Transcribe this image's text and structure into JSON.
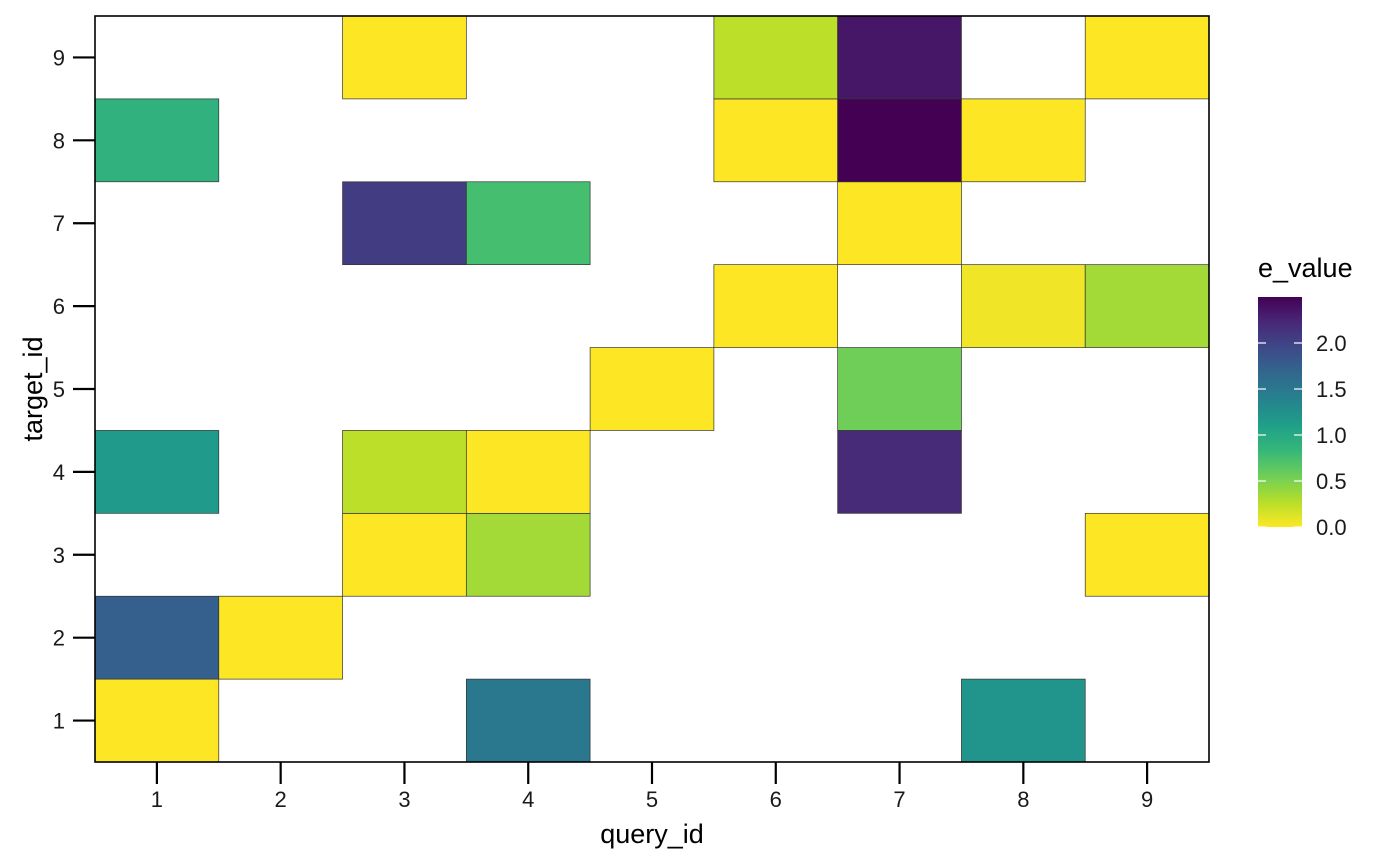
{
  "chart_data": {
    "type": "heatmap",
    "xlabel": "query_id",
    "ylabel": "target_id",
    "x_categories": [
      "1",
      "2",
      "3",
      "4",
      "5",
      "6",
      "7",
      "8",
      "9"
    ],
    "y_categories": [
      "1",
      "2",
      "3",
      "4",
      "5",
      "6",
      "7",
      "8",
      "9"
    ],
    "cells": [
      {
        "x": 1,
        "y": 1,
        "value": 0.0
      },
      {
        "x": 1,
        "y": 2,
        "value": 1.75
      },
      {
        "x": 1,
        "y": 4,
        "value": 1.15
      },
      {
        "x": 1,
        "y": 8,
        "value": 0.9
      },
      {
        "x": 2,
        "y": 2,
        "value": 0.0
      },
      {
        "x": 3,
        "y": 3,
        "value": 0.0
      },
      {
        "x": 3,
        "y": 4,
        "value": 0.25
      },
      {
        "x": 3,
        "y": 7,
        "value": 2.05
      },
      {
        "x": 3,
        "y": 9,
        "value": 0.0
      },
      {
        "x": 4,
        "y": 1,
        "value": 1.5
      },
      {
        "x": 4,
        "y": 3,
        "value": 0.35
      },
      {
        "x": 4,
        "y": 4,
        "value": 0.0
      },
      {
        "x": 4,
        "y": 7,
        "value": 0.75
      },
      {
        "x": 5,
        "y": 5,
        "value": 0.0
      },
      {
        "x": 6,
        "y": 6,
        "value": 0.0
      },
      {
        "x": 6,
        "y": 8,
        "value": 0.0
      },
      {
        "x": 6,
        "y": 9,
        "value": 0.25
      },
      {
        "x": 7,
        "y": 4,
        "value": 2.2
      },
      {
        "x": 7,
        "y": 5,
        "value": 0.55
      },
      {
        "x": 7,
        "y": 7,
        "value": 0.0
      },
      {
        "x": 7,
        "y": 8,
        "value": 2.5
      },
      {
        "x": 7,
        "y": 9,
        "value": 2.35
      },
      {
        "x": 8,
        "y": 1,
        "value": 1.2
      },
      {
        "x": 8,
        "y": 6,
        "value": 0.05
      },
      {
        "x": 8,
        "y": 8,
        "value": 0.0
      },
      {
        "x": 9,
        "y": 3,
        "value": 0.0
      },
      {
        "x": 9,
        "y": 6,
        "value": 0.35
      },
      {
        "x": 9,
        "y": 9,
        "value": 0.0
      }
    ],
    "colorbar": {
      "title": "e_value",
      "ticks": [
        "0.0",
        "0.5",
        "1.0",
        "1.5",
        "2.0"
      ],
      "tick_values": [
        0,
        0.5,
        1.0,
        1.5,
        2.0
      ],
      "range": [
        0,
        2.5
      ],
      "palette": "viridis (reversed)",
      "colors": [
        "#fde725",
        "#b5de2b",
        "#6ece58",
        "#35b779",
        "#1f9e89",
        "#26828e",
        "#31688e",
        "#3e4989",
        "#482878",
        "#440154"
      ]
    },
    "grid": false,
    "legend_position": "right"
  }
}
